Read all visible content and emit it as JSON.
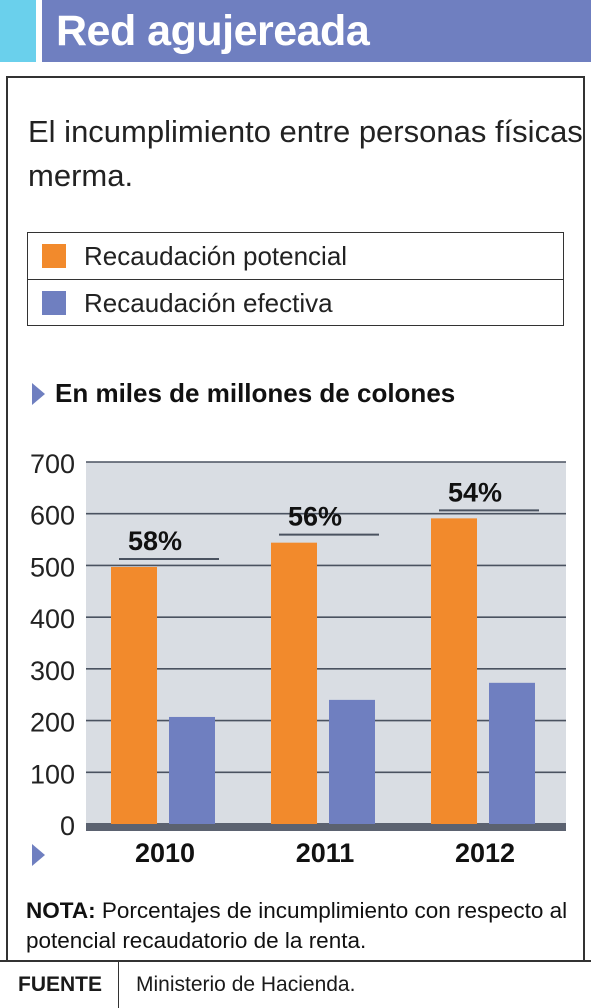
{
  "header": {
    "title": "Red agujereada"
  },
  "subtitle": "El incumplimiento entre personas físicas merma.",
  "legend": [
    {
      "label": "Recaudación potencial",
      "color": "#f28a2c"
    },
    {
      "label": "Recaudación efectiva",
      "color": "#6f7fc0"
    }
  ],
  "unit_label": "En miles de millones de colones",
  "chart_data": {
    "type": "bar",
    "categories": [
      "2010",
      "2011",
      "2012"
    ],
    "series": [
      {
        "name": "Recaudación potencial",
        "values": [
          497,
          544,
          591
        ],
        "color": "#f28a2c"
      },
      {
        "name": "Recaudación efectiva",
        "values": [
          207,
          240,
          273
        ],
        "color": "#6f7fc0"
      }
    ],
    "annotations": [
      "58%",
      "56%",
      "54%"
    ],
    "ylim": [
      0,
      700
    ],
    "yticks": [
      0,
      100,
      200,
      300,
      400,
      500,
      600,
      700
    ],
    "grid": true,
    "plot_background": "#d9dde3",
    "xlabel": "",
    "ylabel": ""
  },
  "note": {
    "label": "NOTA:",
    "text": "Porcentajes de incumplimiento con respecto al potencial recaudatorio de la renta."
  },
  "footer": {
    "key": "FUENTE",
    "value": "Ministerio de Hacienda."
  }
}
